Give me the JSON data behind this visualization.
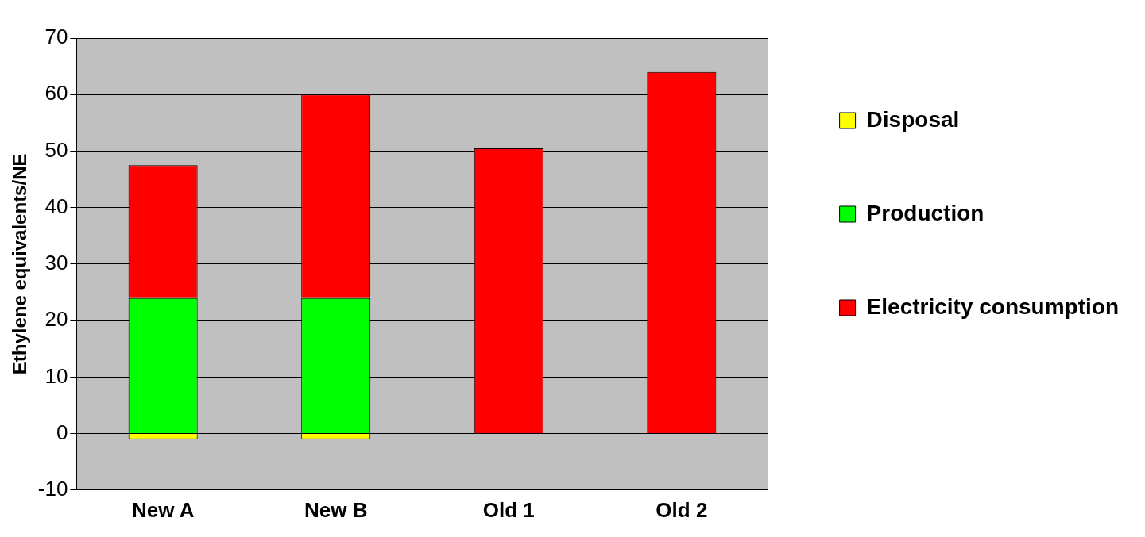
{
  "chart_data": {
    "type": "bar",
    "ylabel": "Ethylene equivalents/NE",
    "categories": [
      "New A",
      "New B",
      "Old 1",
      "Old 2"
    ],
    "series": [
      {
        "name": "Disposal",
        "color": "#ffff00",
        "values": [
          -1,
          -1,
          null,
          null
        ]
      },
      {
        "name": "Production",
        "color": "#00ff00",
        "values": [
          24,
          24,
          null,
          null
        ]
      },
      {
        "name": "Electricity consumption",
        "color": "#ff0000",
        "values": [
          23.5,
          36,
          50.5,
          64
        ]
      }
    ],
    "stacked": true,
    "ylim": [
      -10,
      70
    ],
    "yticks": [
      -10,
      0,
      10,
      20,
      30,
      40,
      50,
      60,
      70
    ],
    "grid": "y",
    "legend": "right"
  }
}
